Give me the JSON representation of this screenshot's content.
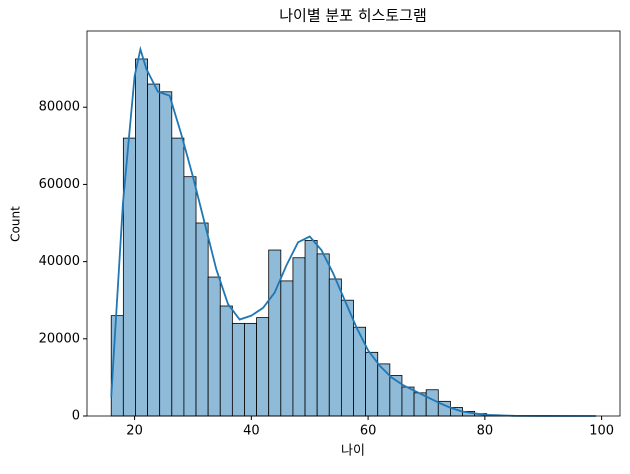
{
  "chart_data": {
    "type": "histogram",
    "title": "나이별 분포 히스토그램",
    "xlabel": "나이",
    "ylabel": "Count",
    "bins": [
      16,
      18.075,
      20.15,
      22.225,
      24.3,
      26.375,
      28.45,
      30.525,
      32.6,
      34.675,
      36.75,
      38.825,
      40.9,
      42.975,
      45.05,
      47.125,
      49.2,
      51.275,
      53.35,
      55.425,
      57.5,
      59.575,
      61.65,
      63.725,
      65.8,
      67.875,
      69.95,
      72.025,
      74.1,
      76.175,
      78.25,
      80.325,
      82.4,
      84.475,
      86.55,
      88.625,
      90.7,
      92.775,
      94.85,
      96.925,
      99
    ],
    "values": [
      26000,
      72000,
      92500,
      86000,
      84000,
      72000,
      62000,
      50000,
      36000,
      28500,
      24000,
      24000,
      25500,
      43000,
      35000,
      41000,
      45500,
      42000,
      35500,
      30000,
      23000,
      16500,
      13500,
      10500,
      7500,
      6000,
      6800,
      3800,
      2200,
      1200,
      600,
      300,
      150,
      100,
      50,
      30,
      20,
      10,
      5,
      5
    ],
    "color": "#8fbbd9",
    "edgecolor": "#000000",
    "kde": {
      "x": [
        16,
        18,
        20,
        21,
        22,
        24,
        26,
        28,
        30,
        32,
        34,
        36,
        38,
        40,
        42,
        44,
        46,
        48,
        50,
        52,
        54,
        56,
        58,
        60,
        62,
        64,
        66,
        68,
        70,
        72,
        74,
        76,
        80,
        85,
        90,
        99
      ],
      "values": [
        5000,
        55000,
        88000,
        95000,
        90000,
        84000,
        83000,
        73000,
        62000,
        50000,
        38000,
        29000,
        25000,
        26000,
        28000,
        32000,
        39000,
        45000,
        46500,
        43000,
        37000,
        30000,
        23000,
        17000,
        13000,
        10000,
        8000,
        6500,
        5000,
        3500,
        2200,
        1200,
        300,
        50,
        10,
        0
      ],
      "color": "#1f77b4"
    },
    "xlim": [
      11.85,
      103.15
    ],
    "ylim": [
      0,
      99750
    ],
    "xticks": [
      20,
      40,
      60,
      80,
      100
    ],
    "yticks": [
      0,
      20000,
      40000,
      60000,
      80000
    ]
  }
}
